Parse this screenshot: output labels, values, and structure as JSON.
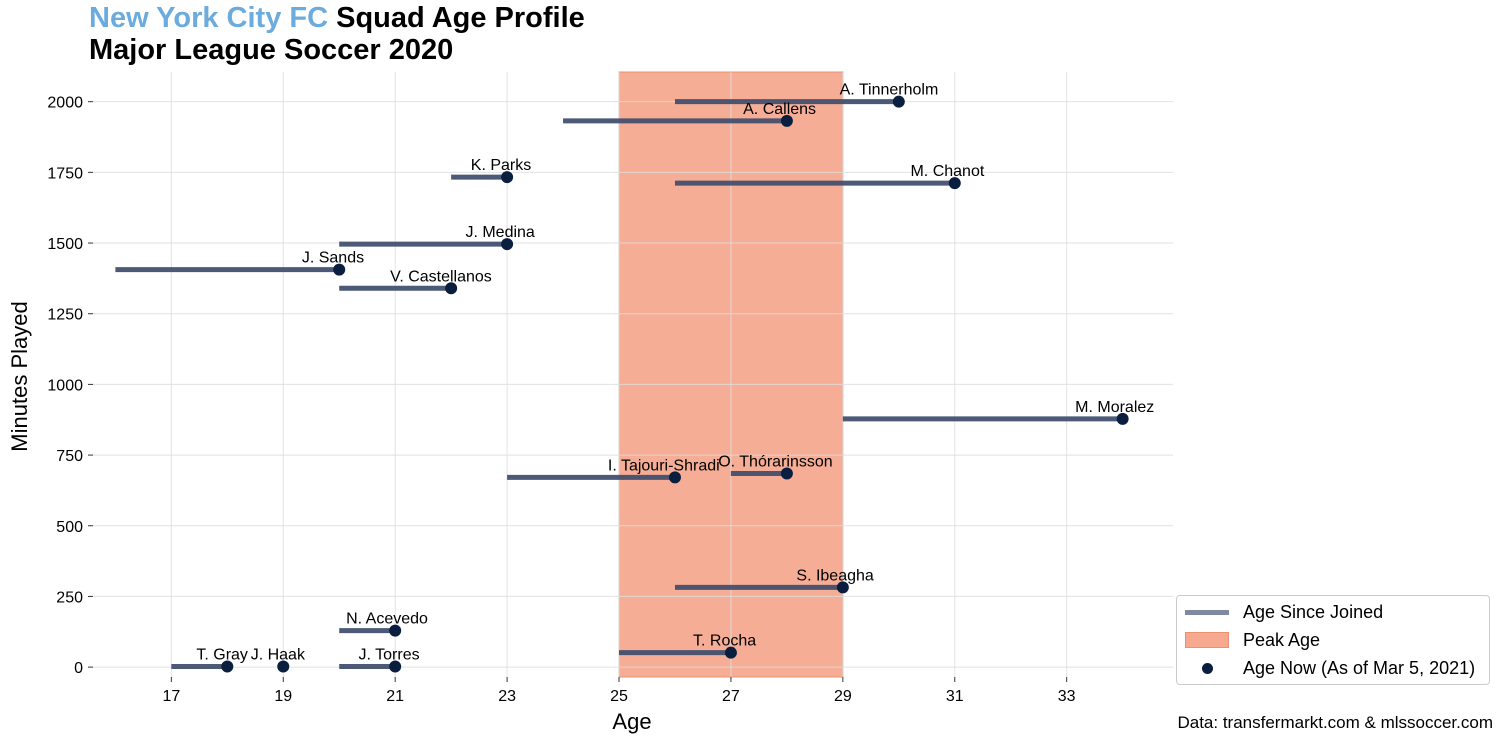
{
  "title": {
    "team": "New York City FC",
    "line1_rest": " Squad Age Profile",
    "line2": "Major League Soccer 2020",
    "team_color": "#6CABDD"
  },
  "source": "Data: transfermarkt.com & mlssoccer.com",
  "legend": {
    "joined": "Age Since Joined",
    "peak": "Peak Age",
    "now": "Age Now (As of Mar 5, 2021)"
  },
  "colors": {
    "line": "#3d4c6b",
    "dot": "#0a1e3f",
    "peak": "#f6a98f",
    "grid": "#dddddd"
  },
  "chart_data": {
    "type": "scatter",
    "xlabel": "Age",
    "ylabel": "Minutes Played",
    "xlim": [
      15.6,
      34.9
    ],
    "ylim": [
      -35,
      2105
    ],
    "xticks": [
      17,
      19,
      21,
      23,
      25,
      27,
      29,
      31,
      33
    ],
    "yticks": [
      0,
      250,
      500,
      750,
      1000,
      1250,
      1500,
      1750,
      2000
    ],
    "grid": true,
    "legend_position": "outside bottom-right",
    "peak_age": [
      25,
      29
    ],
    "players": [
      {
        "name": "A. Tinnerholm",
        "joined_age": 26,
        "age_now": 30,
        "minutes": 2000
      },
      {
        "name": "A. Callens",
        "joined_age": 24,
        "age_now": 28,
        "minutes": 1932
      },
      {
        "name": "K. Parks",
        "joined_age": 22,
        "age_now": 23,
        "minutes": 1733
      },
      {
        "name": "M. Chanot",
        "joined_age": 26,
        "age_now": 31,
        "minutes": 1712
      },
      {
        "name": "J. Medina",
        "joined_age": 20,
        "age_now": 23,
        "minutes": 1496
      },
      {
        "name": "J. Sands",
        "joined_age": 16,
        "age_now": 20,
        "minutes": 1406
      },
      {
        "name": "V. Castellanos",
        "joined_age": 20,
        "age_now": 22,
        "minutes": 1340
      },
      {
        "name": "M. Moralez",
        "joined_age": 29,
        "age_now": 34,
        "minutes": 878
      },
      {
        "name": "O. Thórarinsson",
        "joined_age": 27,
        "age_now": 28,
        "minutes": 685
      },
      {
        "name": "I. Tajouri-Shradi",
        "joined_age": 23,
        "age_now": 26,
        "minutes": 671
      },
      {
        "name": "S. Ibeagha",
        "joined_age": 26,
        "age_now": 29,
        "minutes": 282
      },
      {
        "name": "N. Acevedo",
        "joined_age": 20,
        "age_now": 21,
        "minutes": 129
      },
      {
        "name": "T. Rocha",
        "joined_age": 25,
        "age_now": 27,
        "minutes": 51
      },
      {
        "name": "T. Gray",
        "joined_age": 17,
        "age_now": 18,
        "minutes": 2
      },
      {
        "name": "J. Haak",
        "joined_age": 19,
        "age_now": 19,
        "minutes": 2
      },
      {
        "name": "J. Torres",
        "joined_age": 20,
        "age_now": 21,
        "minutes": 2
      }
    ]
  }
}
